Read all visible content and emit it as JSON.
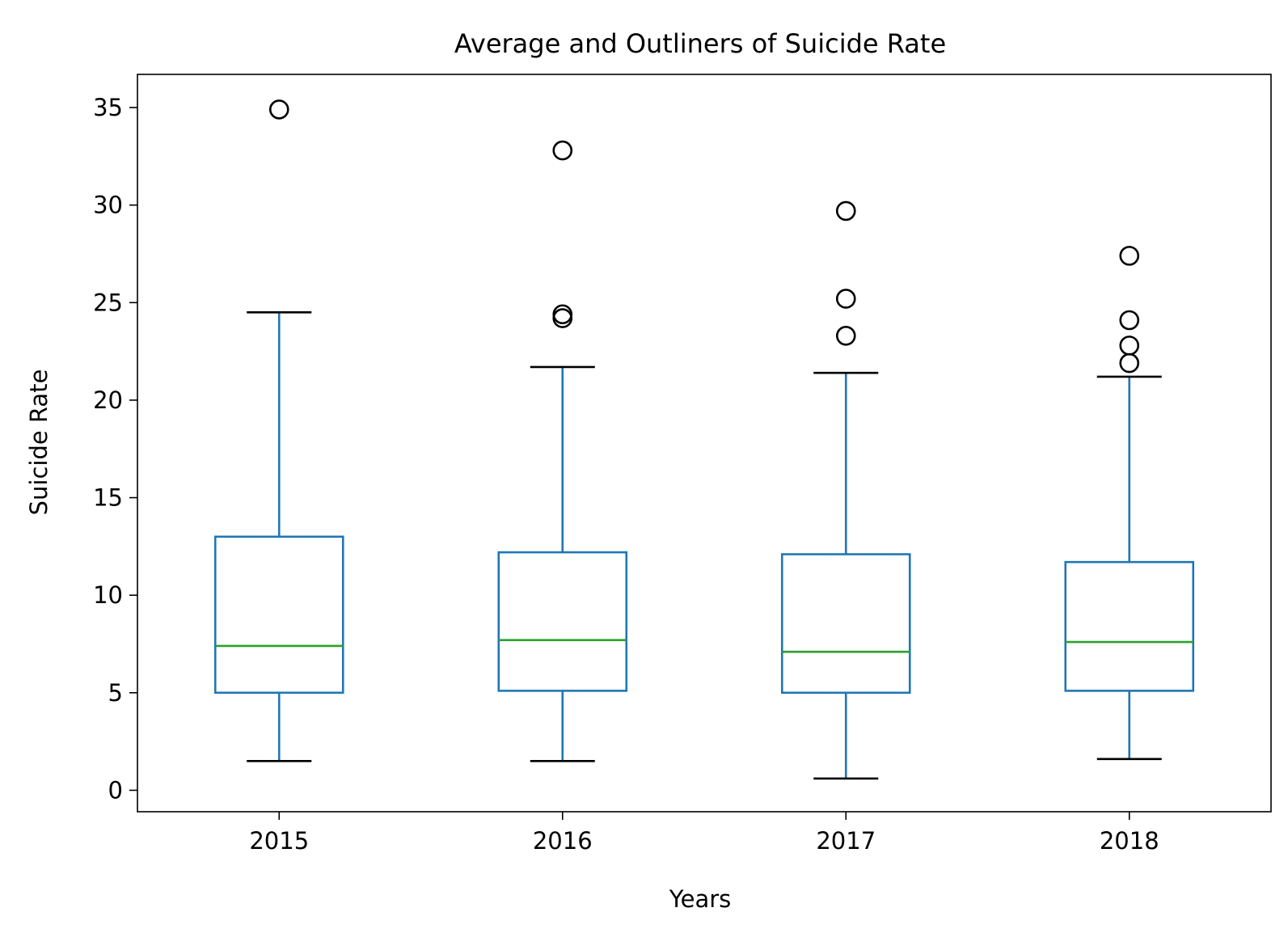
{
  "chart_data": {
    "type": "boxplot",
    "title": "Average and Outliners of Suicide Rate",
    "xlabel": "Years",
    "ylabel": "Suicide Rate",
    "categories": [
      "2015",
      "2016",
      "2017",
      "2018"
    ],
    "ylim": [
      -1.1,
      36.7
    ],
    "yticks": [
      0,
      5,
      10,
      15,
      20,
      25,
      30,
      35
    ],
    "grid": false,
    "boxes": [
      {
        "category": "2015",
        "whisker_low": 1.5,
        "q1": 5.0,
        "median": 7.4,
        "q3": 13.0,
        "whisker_high": 24.5,
        "outliers": [
          34.9
        ]
      },
      {
        "category": "2016",
        "whisker_low": 1.5,
        "q1": 5.1,
        "median": 7.7,
        "q3": 12.2,
        "whisker_high": 21.7,
        "outliers": [
          24.2,
          24.4,
          32.8
        ]
      },
      {
        "category": "2017",
        "whisker_low": 0.6,
        "q1": 5.0,
        "median": 7.1,
        "q3": 12.1,
        "whisker_high": 21.4,
        "outliers": [
          23.3,
          25.2,
          29.7
        ]
      },
      {
        "category": "2018",
        "whisker_low": 1.6,
        "q1": 5.1,
        "median": 7.6,
        "q3": 11.7,
        "whisker_high": 21.2,
        "outliers": [
          21.9,
          22.8,
          24.1,
          27.4
        ]
      }
    ],
    "colors": {
      "box": "#1f77b4",
      "median": "#2ca02c",
      "caps": "#000000",
      "outlier": "#000000"
    }
  }
}
